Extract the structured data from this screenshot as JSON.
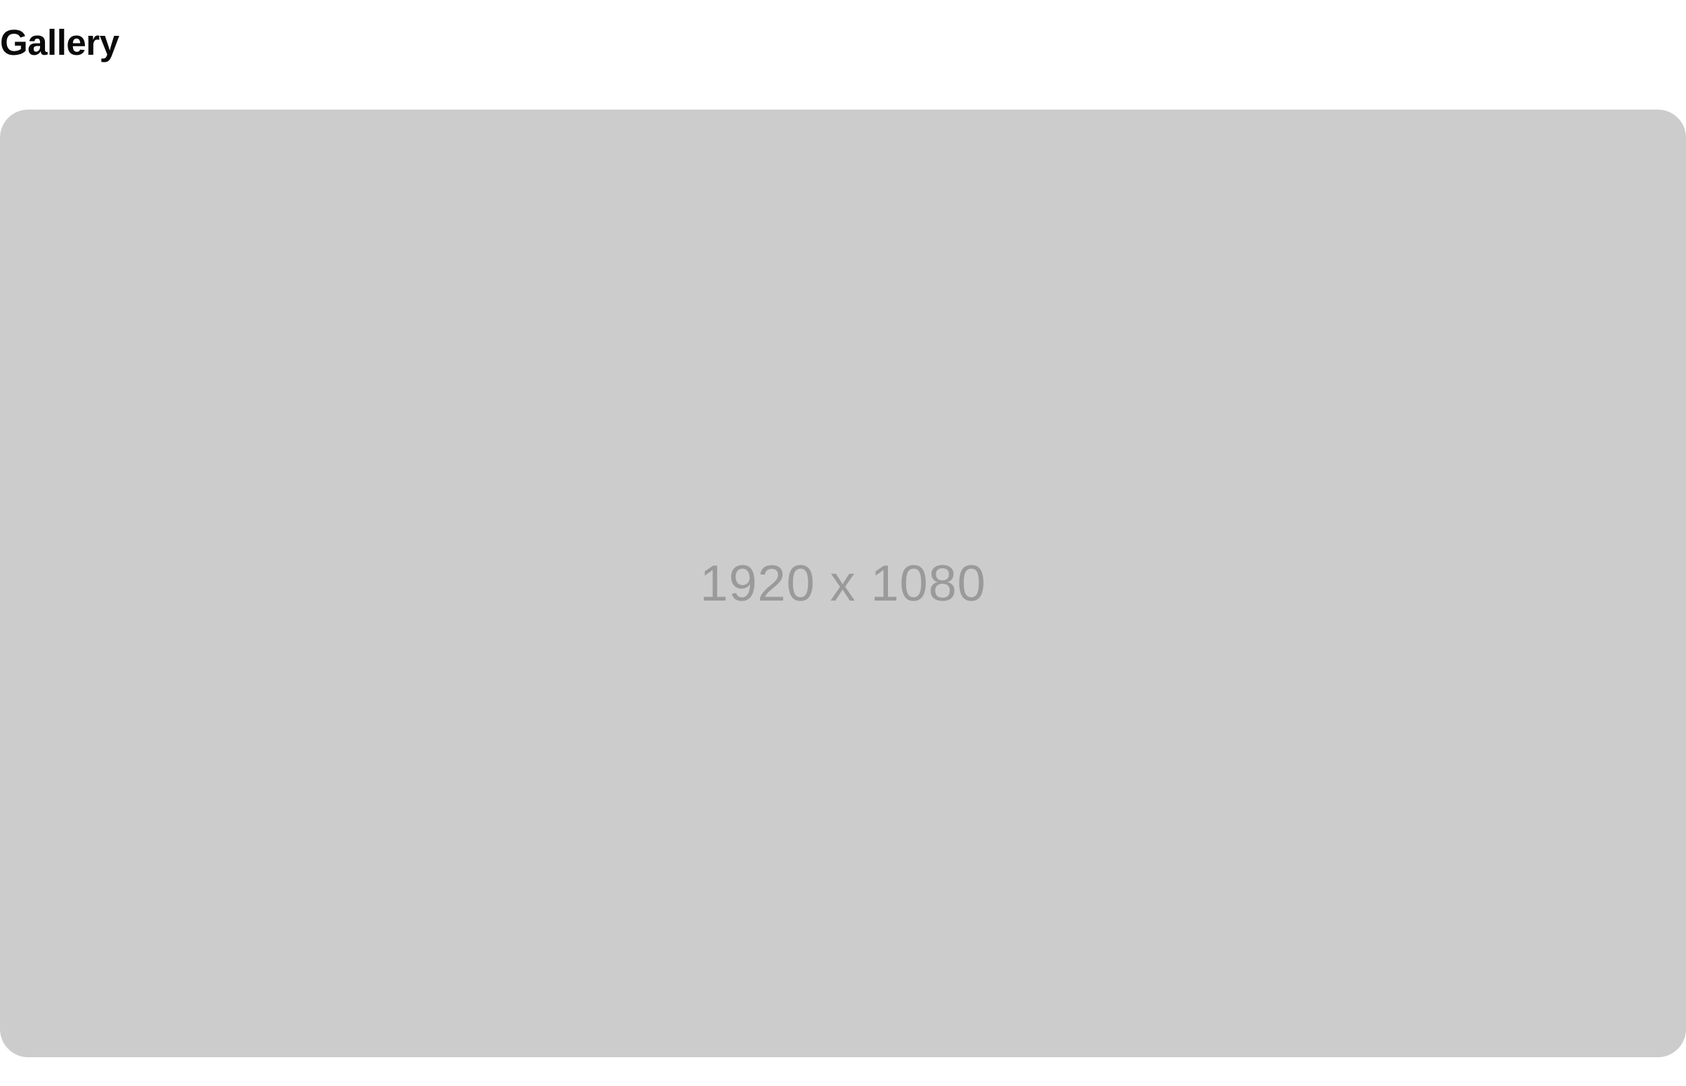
{
  "page": {
    "title": "Gallery"
  },
  "gallery": {
    "images": [
      {
        "placeholder_text": "1920 x 1080"
      }
    ]
  },
  "colors": {
    "placeholder_background": "#cccccc",
    "placeholder_text": "#9a9a9a",
    "title_text": "#0a0a0a"
  }
}
